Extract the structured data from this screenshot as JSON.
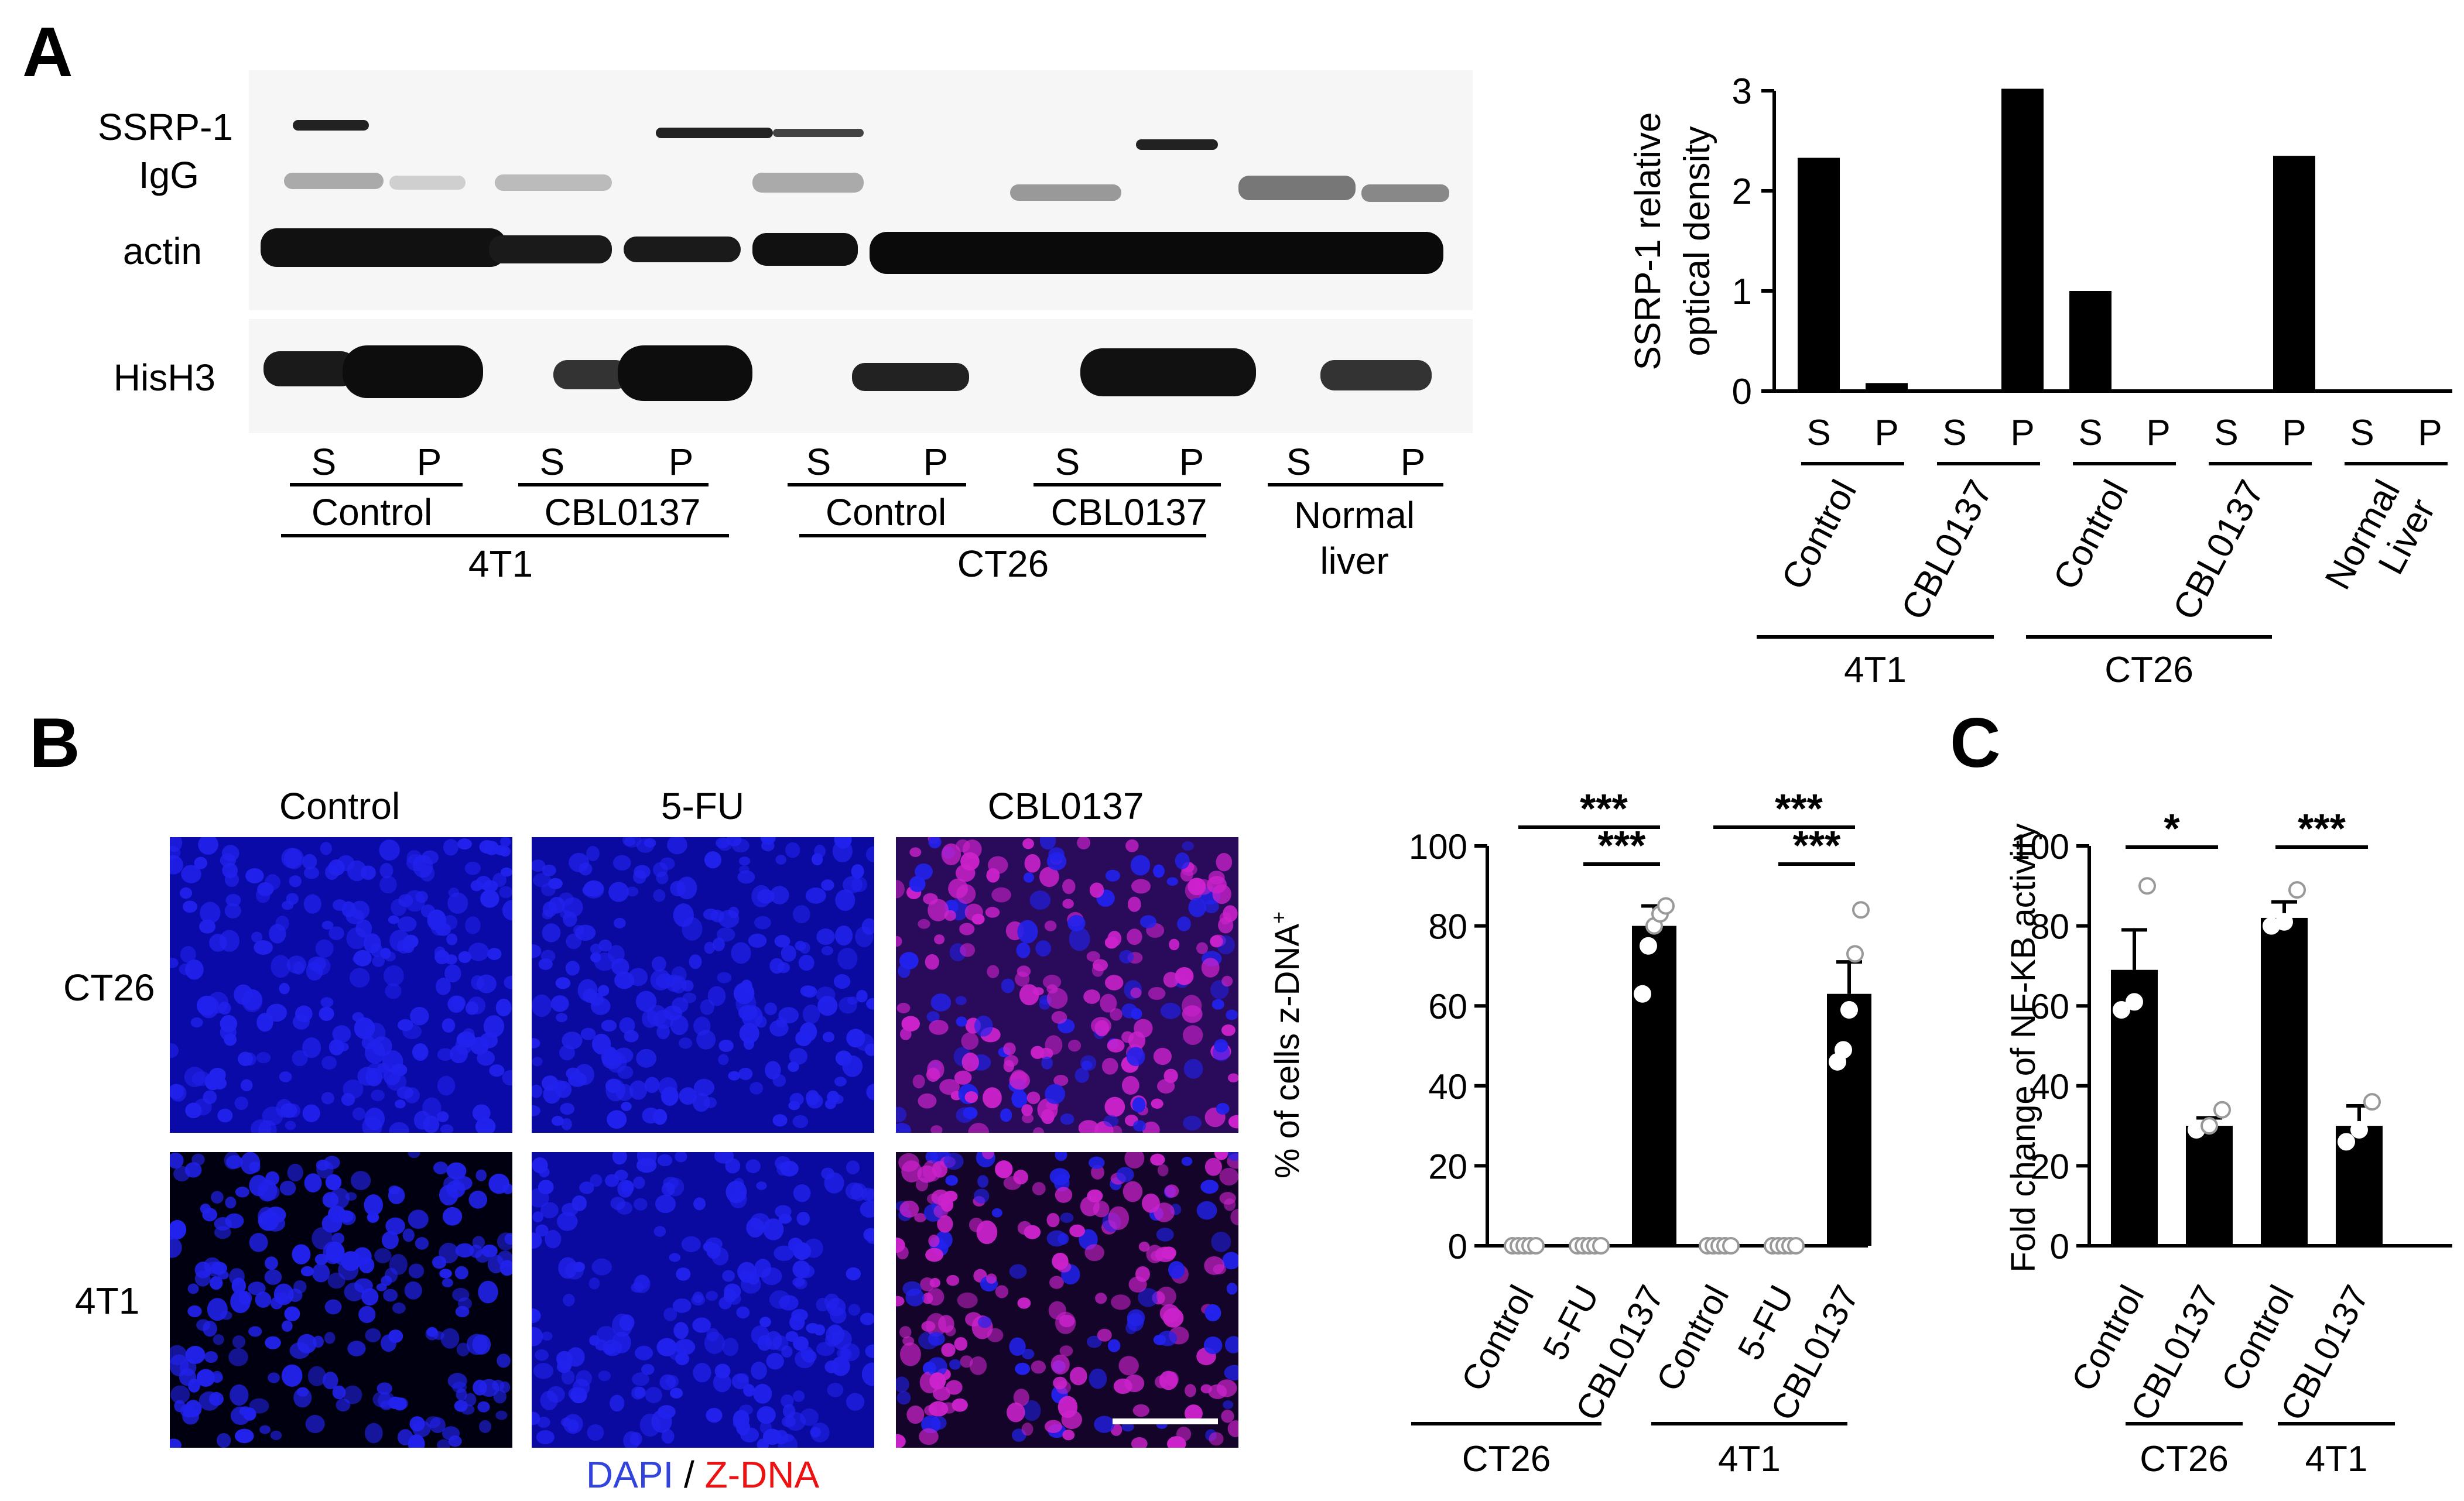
{
  "panels": {
    "a": "A",
    "b": "B",
    "c": "C"
  },
  "blot": {
    "bands": [
      "SSRP-1",
      "IgG",
      "actin",
      "HisH3"
    ],
    "lanes": [
      "S",
      "P",
      "S",
      "P",
      "S",
      "P",
      "S",
      "P",
      "S",
      "P"
    ],
    "treatments": [
      "Control",
      "CBL0137",
      "Control",
      "CBL0137",
      "Normal",
      "liver"
    ],
    "cell_lines": [
      "4T1",
      "CT26"
    ],
    "colors": {
      "band": "#111111",
      "background": "#f6f6f6"
    }
  },
  "micro": {
    "columns": [
      "Control",
      "5-FU",
      "CBL0137"
    ],
    "rows": [
      "CT26",
      "4T1"
    ],
    "legend": {
      "dapi": "DAPI",
      "sep": " / ",
      "zdna": "Z-DNA"
    },
    "colors": {
      "dapi": "#2222ee",
      "zdna": "#ee1111",
      "merge": "#cc22cc"
    }
  },
  "chart_data": [
    {
      "type": "bar",
      "panel": "A",
      "ylabel_lines": [
        "SSRP-1 relative",
        "optical density"
      ],
      "yticks": [
        "0",
        "1",
        "2",
        "3"
      ],
      "ylim": [
        0,
        3
      ],
      "categories": [
        "S",
        "P",
        "S",
        "P",
        "S",
        "P",
        "S",
        "P",
        "S",
        "P"
      ],
      "values": [
        2.33,
        0.08,
        0,
        3.02,
        1.0,
        0,
        0,
        2.35,
        0,
        0
      ],
      "treatments": [
        "Control",
        "CBL0137",
        "Control",
        "CBL0137",
        "Normal\nLiver"
      ],
      "groups": [
        "4T1",
        "CT26"
      ]
    },
    {
      "type": "bar",
      "panel": "B",
      "ylabel": "% of cells z-DNA",
      "ylabel_sup": "+",
      "yticks": [
        "0",
        "20",
        "40",
        "60",
        "80",
        "100"
      ],
      "ylim": [
        0,
        100
      ],
      "categories": [
        "Control",
        "5-FU",
        "CBL0137",
        "Control",
        "5-FU",
        "CBL0137"
      ],
      "values": [
        0,
        0,
        80,
        0,
        0,
        63
      ],
      "errors": [
        0,
        0,
        5,
        0,
        0,
        8
      ],
      "points": [
        [
          0,
          0,
          0,
          0,
          0
        ],
        [
          0,
          0,
          0,
          0,
          0
        ],
        [
          63,
          75,
          80,
          83,
          85
        ],
        [
          0,
          0,
          0,
          0,
          0
        ],
        [
          0,
          0,
          0,
          0,
          0
        ],
        [
          46,
          49,
          59,
          73,
          84
        ]
      ],
      "groups": [
        "CT26",
        "4T1"
      ],
      "significance": [
        "***",
        "***",
        "***",
        "***"
      ]
    },
    {
      "type": "bar",
      "panel": "C",
      "ylabel": "Fold change of NF-KB activity",
      "yticks": [
        "0",
        "20",
        "40",
        "60",
        "80",
        "100"
      ],
      "ylim": [
        0,
        100
      ],
      "categories": [
        "Control",
        "CBL0137",
        "Control",
        "CBL0137"
      ],
      "values": [
        69,
        30,
        82,
        30
      ],
      "errors": [
        10,
        2,
        4,
        5
      ],
      "points": [
        [
          59,
          61,
          90
        ],
        [
          29,
          30,
          34
        ],
        [
          80,
          81,
          89
        ],
        [
          26,
          29,
          36
        ]
      ],
      "groups": [
        "CT26",
        "4T1"
      ],
      "significance": [
        "*",
        "***"
      ]
    }
  ]
}
